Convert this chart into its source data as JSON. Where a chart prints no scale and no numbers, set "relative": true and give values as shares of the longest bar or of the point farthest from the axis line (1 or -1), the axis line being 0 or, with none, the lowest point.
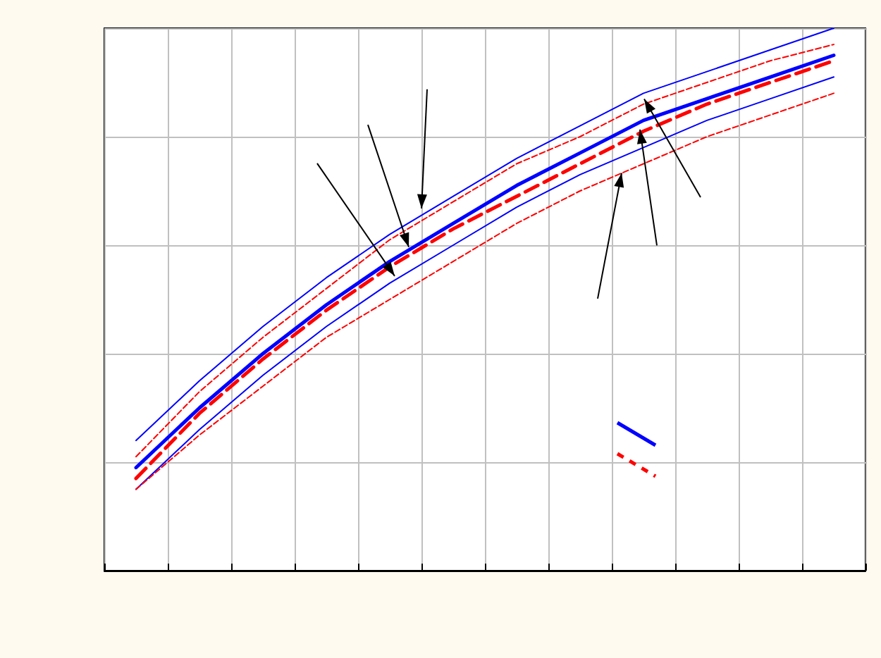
{
  "chart_data": {
    "type": "line",
    "relative": true,
    "categories": [
      null,
      null,
      null,
      null,
      null,
      null,
      null,
      null,
      null,
      null,
      null,
      null
    ],
    "series": [
      {
        "color": "#0000ff",
        "line_style": "solid",
        "values": [
          0.19,
          0.3,
          0.4,
          0.49,
          0.57,
          0.64,
          0.71,
          0.77,
          0.83,
          0.87,
          0.91,
          0.95
        ]
      },
      {
        "color": "#ff0000",
        "line_style": "dashed",
        "values": [
          0.17,
          0.29,
          0.39,
          0.48,
          0.56,
          0.63,
          0.69,
          0.75,
          0.81,
          0.86,
          0.9,
          0.94
        ]
      },
      {
        "color": "#0000ff",
        "line_style": "solid",
        "values": [
          0.24,
          0.35,
          0.45,
          0.54,
          0.62,
          0.69,
          0.76,
          0.82,
          0.88,
          0.92,
          0.96,
          1.0
        ]
      },
      {
        "color": "#0000ff",
        "line_style": "solid",
        "values": [
          0.15,
          0.26,
          0.36,
          0.45,
          0.53,
          0.6,
          0.67,
          0.73,
          0.78,
          0.83,
          0.87,
          0.91
        ]
      },
      {
        "color": "#ff0000",
        "line_style": "dashed",
        "values": [
          0.21,
          0.33,
          0.43,
          0.52,
          0.61,
          0.68,
          0.75,
          0.8,
          0.86,
          0.9,
          0.94,
          0.97
        ]
      },
      {
        "color": "#ff0000",
        "line_style": "dashed",
        "values": [
          0.15,
          0.25,
          0.34,
          0.43,
          0.5,
          0.57,
          0.64,
          0.7,
          0.75,
          0.8,
          0.84,
          0.88
        ]
      }
    ],
    "grid": true,
    "marker": "none"
  }
}
